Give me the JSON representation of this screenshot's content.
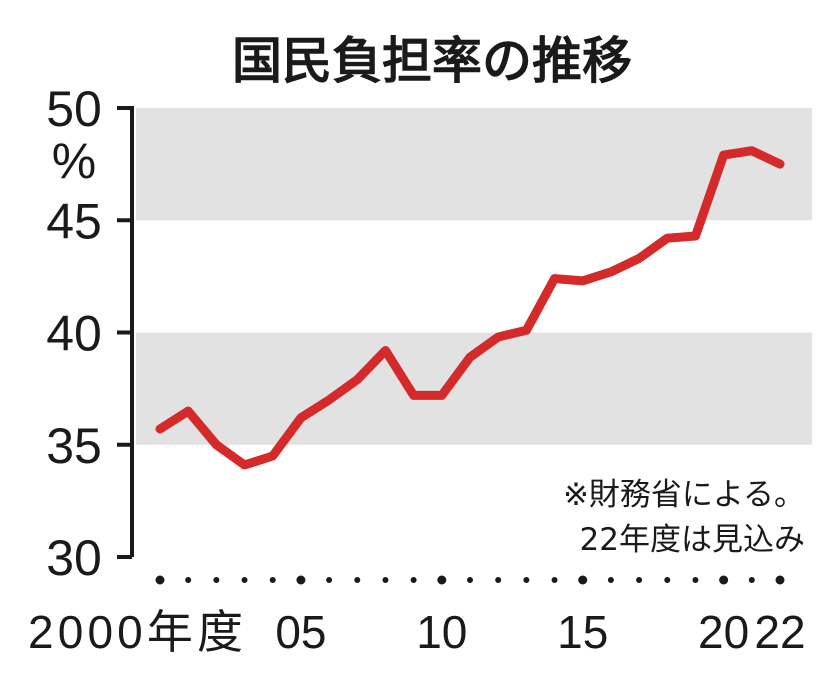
{
  "chart_data": {
    "type": "line",
    "title": "国民負担率の推移",
    "ylabel": "",
    "y_unit": "%",
    "ylim": [
      30,
      50
    ],
    "yticks": [
      30,
      35,
      40,
      45,
      50
    ],
    "y_tick_labels": [
      "30",
      "35",
      "40",
      "45",
      "50"
    ],
    "xlim": [
      2000,
      2022
    ],
    "x_dot_years": [
      2000,
      2001,
      2002,
      2003,
      2004,
      2005,
      2006,
      2007,
      2008,
      2009,
      2010,
      2011,
      2012,
      2013,
      2014,
      2015,
      2016,
      2017,
      2018,
      2019,
      2020,
      2021,
      2022
    ],
    "x_tick_labels": [
      {
        "year": 2000,
        "label": "2000年度"
      },
      {
        "year": 2005,
        "label": "05"
      },
      {
        "year": 2010,
        "label": "10"
      },
      {
        "year": 2015,
        "label": "15"
      },
      {
        "year": 2020,
        "label": "20"
      },
      {
        "year": 2022,
        "label": "22"
      }
    ],
    "grid": "alternating-bands",
    "band_color": "#e2e2e2",
    "series": [
      {
        "color": "#d42a2a",
        "x": [
          2000,
          2001,
          2002,
          2003,
          2004,
          2005,
          2006,
          2007,
          2008,
          2009,
          2010,
          2011,
          2012,
          2013,
          2014,
          2015,
          2016,
          2017,
          2018,
          2019,
          2020,
          2021,
          2022
        ],
        "values": [
          35.7,
          36.5,
          35.0,
          34.1,
          34.5,
          36.2,
          37.0,
          37.9,
          39.2,
          37.2,
          37.2,
          38.9,
          39.8,
          40.1,
          42.4,
          42.3,
          42.7,
          43.3,
          44.2,
          44.3,
          47.9,
          48.1,
          47.5
        ]
      }
    ],
    "annotation": [
      "※財務省による。",
      "22年度は見込み"
    ]
  }
}
